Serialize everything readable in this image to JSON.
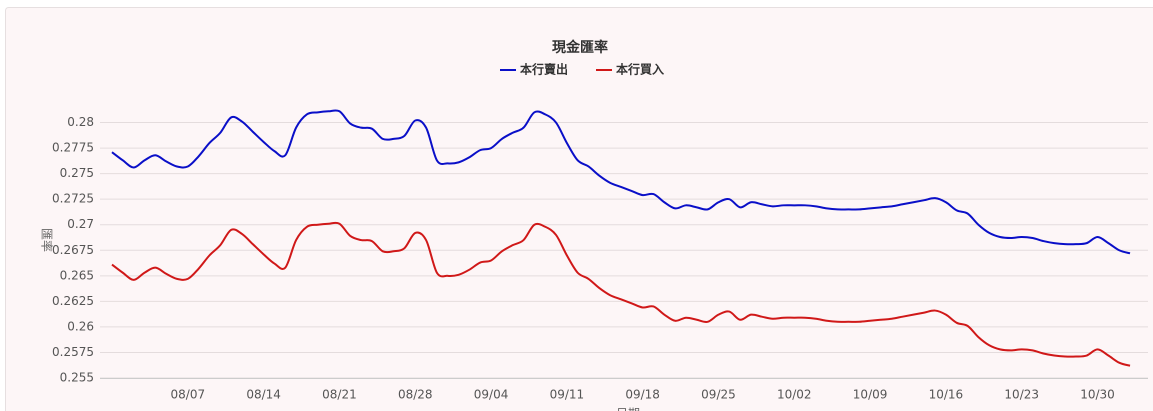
{
  "chart_data": {
    "type": "line",
    "title": "現金匯率",
    "y_label": "匯率",
    "x_label": "日期",
    "legend": "top",
    "grid": true,
    "categories": [
      null,
      null,
      null,
      null,
      null,
      null,
      null,
      "08/07",
      null,
      null,
      null,
      null,
      null,
      null,
      "08/14",
      null,
      null,
      null,
      null,
      null,
      null,
      "08/21",
      null,
      null,
      null,
      null,
      null,
      null,
      "08/28",
      null,
      null,
      null,
      null,
      null,
      null,
      "09/04",
      null,
      null,
      null,
      null,
      null,
      null,
      "09/11",
      null,
      null,
      null,
      null,
      null,
      null,
      "09/18",
      null,
      null,
      null,
      null,
      null,
      null,
      "09/25",
      null,
      null,
      null,
      null,
      null,
      null,
      "10/02",
      null,
      null,
      null,
      null,
      null,
      null,
      "10/09",
      null,
      null,
      null,
      null,
      null,
      null,
      "10/16",
      null,
      null,
      null,
      null,
      null,
      null,
      "10/23",
      null,
      null,
      null,
      null,
      null,
      null,
      "10/30",
      null,
      null,
      null
    ],
    "series": [
      {
        "name": "本行賣出",
        "color": "#0a0fc8",
        "values": [
          0.2771,
          0.2763,
          0.2756,
          0.2763,
          0.2768,
          0.2762,
          0.2757,
          0.2757,
          0.2767,
          0.278,
          0.279,
          0.2805,
          0.2801,
          0.2791,
          0.2781,
          0.2772,
          0.2768,
          0.2795,
          0.2808,
          0.281,
          0.2811,
          0.2811,
          0.2799,
          0.2795,
          0.2794,
          0.2784,
          0.2784,
          0.2787,
          0.2802,
          0.2795,
          0.2763,
          0.276,
          0.2761,
          0.2766,
          0.2773,
          0.2775,
          0.2784,
          0.279,
          0.2795,
          0.281,
          0.2808,
          0.28,
          0.278,
          0.2763,
          0.2757,
          0.2748,
          0.2741,
          0.2737,
          0.2733,
          0.2729,
          0.273,
          0.2722,
          0.2716,
          0.2719,
          0.2717,
          0.2715,
          0.2722,
          0.2725,
          0.2717,
          0.2722,
          0.272,
          0.2718,
          0.2719,
          0.2719,
          0.2719,
          0.2718,
          0.2716,
          0.2715,
          0.2715,
          0.2715,
          0.2716,
          0.2717,
          0.2718,
          0.272,
          0.2722,
          0.2724,
          0.2726,
          0.2722,
          0.2714,
          0.2711,
          0.27,
          0.2692,
          0.2688,
          0.2687,
          0.2688,
          0.2687,
          0.2684,
          0.2682,
          0.2681,
          0.2681,
          0.2682,
          0.2688,
          0.2682,
          0.2675,
          0.2672
        ]
      },
      {
        "name": "本行買入",
        "color": "#d01818",
        "values": [
          0.2661,
          0.2653,
          0.2646,
          0.2653,
          0.2658,
          0.2652,
          0.2647,
          0.2647,
          0.2657,
          0.267,
          0.268,
          0.2695,
          0.2691,
          0.2681,
          0.2671,
          0.2662,
          0.2658,
          0.2685,
          0.2698,
          0.27,
          0.2701,
          0.2701,
          0.2689,
          0.2685,
          0.2684,
          0.2674,
          0.2674,
          0.2677,
          0.2692,
          0.2685,
          0.2653,
          0.265,
          0.2651,
          0.2656,
          0.2663,
          0.2665,
          0.2674,
          0.268,
          0.2685,
          0.27,
          0.2698,
          0.269,
          0.267,
          0.2653,
          0.2647,
          0.2638,
          0.2631,
          0.2627,
          0.2623,
          0.2619,
          0.262,
          0.2612,
          0.2606,
          0.2609,
          0.2607,
          0.2605,
          0.2612,
          0.2615,
          0.2607,
          0.2612,
          0.261,
          0.2608,
          0.2609,
          0.2609,
          0.2609,
          0.2608,
          0.2606,
          0.2605,
          0.2605,
          0.2605,
          0.2606,
          0.2607,
          0.2608,
          0.261,
          0.2612,
          0.2614,
          0.2616,
          0.2612,
          0.2604,
          0.2601,
          0.259,
          0.2582,
          0.2578,
          0.2577,
          0.2578,
          0.2577,
          0.2574,
          0.2572,
          0.2571,
          0.2571,
          0.2572,
          0.2578,
          0.2572,
          0.2565,
          0.2562
        ]
      }
    ],
    "ylim": [
      0.255,
      0.2825
    ],
    "yticks": [
      0.255,
      0.2575,
      0.26,
      0.2625,
      0.265,
      0.2675,
      0.27,
      0.2725,
      0.275,
      0.2775,
      0.28
    ]
  }
}
